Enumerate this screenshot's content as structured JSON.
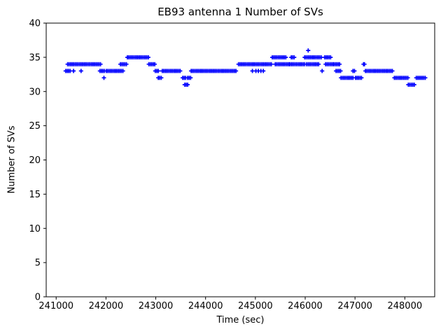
{
  "chart_data": {
    "type": "scatter",
    "title": "EB93 antenna 1 Number of SVs",
    "xlabel": "Time (sec)",
    "ylabel": "Number of SVs",
    "marker": "+",
    "marker_color": "#0000ff",
    "axis_color": "#000000",
    "xlim": [
      240800,
      248600
    ],
    "ylim": [
      0,
      40
    ],
    "xticks": [
      241000,
      242000,
      243000,
      244000,
      245000,
      246000,
      247000,
      248000
    ],
    "yticks": [
      0,
      5,
      10,
      15,
      20,
      25,
      30,
      35,
      40
    ],
    "sample_step_sec": 30,
    "segments": [
      {
        "t0": 241190,
        "t1": 241290,
        "sv": 33
      },
      {
        "t0": 241230,
        "t1": 241900,
        "sv": 34
      },
      {
        "t0": 241880,
        "t1": 241970,
        "sv": 33
      },
      {
        "t0": 242010,
        "t1": 242360,
        "sv": 33
      },
      {
        "t0": 242290,
        "t1": 242430,
        "sv": 34
      },
      {
        "t0": 242430,
        "t1": 242860,
        "sv": 35
      },
      {
        "t0": 242860,
        "t1": 242990,
        "sv": 34
      },
      {
        "t0": 242990,
        "t1": 243060,
        "sv": 33
      },
      {
        "t0": 243050,
        "t1": 243130,
        "sv": 32
      },
      {
        "t0": 243130,
        "t1": 243510,
        "sv": 33
      },
      {
        "t0": 243540,
        "t1": 243610,
        "sv": 32
      },
      {
        "t0": 243580,
        "t1": 243640,
        "sv": 31
      },
      {
        "t0": 243640,
        "t1": 243710,
        "sv": 32
      },
      {
        "t0": 243710,
        "t1": 244620,
        "sv": 33
      },
      {
        "t0": 244660,
        "t1": 245330,
        "sv": 34
      },
      {
        "t0": 245340,
        "t1": 245620,
        "sv": 35
      },
      {
        "t0": 245400,
        "t1": 245690,
        "sv": 34
      },
      {
        "t0": 245690,
        "t1": 245990,
        "sv": 34
      },
      {
        "t0": 245720,
        "t1": 245790,
        "sv": 35
      },
      {
        "t0": 245990,
        "t1": 246330,
        "sv": 35
      },
      {
        "t0": 246030,
        "t1": 246270,
        "sv": 34
      },
      {
        "t0": 246390,
        "t1": 246530,
        "sv": 35
      },
      {
        "t0": 246410,
        "t1": 246570,
        "sv": 34
      },
      {
        "t0": 246570,
        "t1": 246690,
        "sv": 34
      },
      {
        "t0": 246620,
        "t1": 246720,
        "sv": 33
      },
      {
        "t0": 246720,
        "t1": 246960,
        "sv": 32
      },
      {
        "t0": 246960,
        "t1": 247010,
        "sv": 33
      },
      {
        "t0": 247010,
        "t1": 247130,
        "sv": 32
      },
      {
        "t0": 247210,
        "t1": 247760,
        "sv": 33
      },
      {
        "t0": 247790,
        "t1": 248060,
        "sv": 32
      },
      {
        "t0": 248070,
        "t1": 248200,
        "sv": 31
      },
      {
        "t0": 248230,
        "t1": 248420,
        "sv": 32
      }
    ],
    "extra_points": [
      [
        241350,
        33
      ],
      [
        241500,
        33
      ],
      [
        241960,
        32
      ],
      [
        244940,
        33
      ],
      [
        245010,
        33
      ],
      [
        245060,
        33
      ],
      [
        245110,
        33
      ],
      [
        245160,
        33
      ],
      [
        246060,
        36
      ],
      [
        246340,
        33
      ],
      [
        247170,
        34
      ],
      [
        247190,
        34
      ]
    ]
  }
}
